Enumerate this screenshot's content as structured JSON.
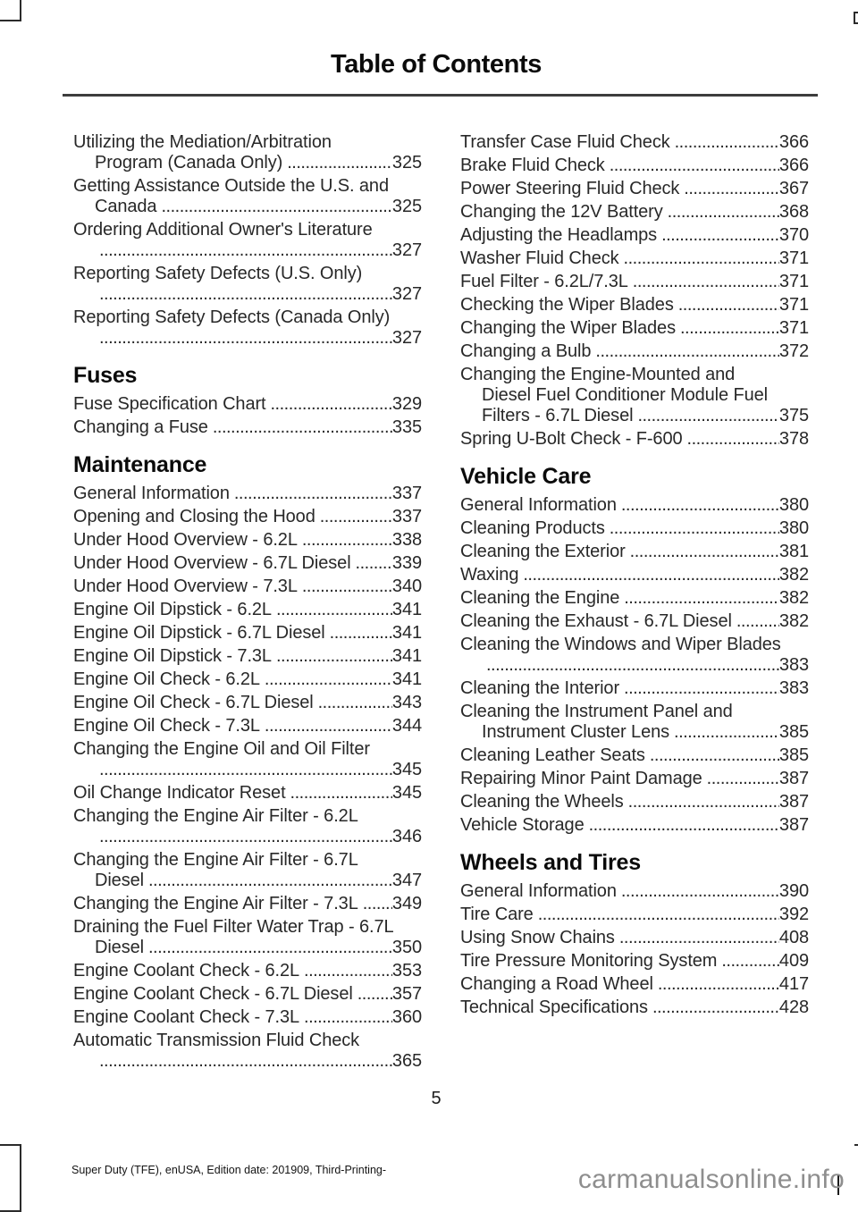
{
  "page": {
    "title": "Table of Contents",
    "page_number": "5",
    "footer_text": "Super Duty (TFE), enUSA, Edition date: 201909, Third-Printing-",
    "watermark": "carmanualsonline.info"
  },
  "colors": {
    "body_text": "#282828",
    "heading_text": "#0b0b0b",
    "title_rule": "#3d3d3d",
    "watermark_gray": "#8e8e8e",
    "background": "#ffffff"
  },
  "toc": {
    "columns": [
      {
        "blocks": [
          {
            "header": "",
            "entries": [
              {
                "lines": [
                  "Utilizing the Mediation/Arbitration",
                  "Program (Canada Only)"
                ],
                "page": "325"
              },
              {
                "lines": [
                  "Getting Assistance Outside the U.S. and",
                  "Canada"
                ],
                "page": "325"
              },
              {
                "lines": [
                  "Ordering Additional Owner's Literature",
                  ""
                ],
                "page": "327"
              },
              {
                "lines": [
                  "Reporting Safety Defects (U.S. Only)",
                  ""
                ],
                "page": "327"
              },
              {
                "lines": [
                  "Reporting Safety Defects (Canada Only)",
                  ""
                ],
                "page": "327"
              }
            ]
          },
          {
            "header": "Fuses",
            "entries": [
              {
                "lines": [
                  "Fuse Specification Chart"
                ],
                "page": "329"
              },
              {
                "lines": [
                  "Changing a Fuse"
                ],
                "page": "335"
              }
            ]
          },
          {
            "header": "Maintenance",
            "entries": [
              {
                "lines": [
                  "General Information"
                ],
                "page": "337"
              },
              {
                "lines": [
                  "Opening and Closing the Hood"
                ],
                "page": "337"
              },
              {
                "lines": [
                  "Under Hood Overview - 6.2L"
                ],
                "page": "338"
              },
              {
                "lines": [
                  "Under Hood Overview - 6.7L Diesel"
                ],
                "page": "339"
              },
              {
                "lines": [
                  "Under Hood Overview - 7.3L"
                ],
                "page": "340"
              },
              {
                "lines": [
                  "Engine Oil Dipstick - 6.2L"
                ],
                "page": "341"
              },
              {
                "lines": [
                  "Engine Oil Dipstick - 6.7L Diesel"
                ],
                "page": "341"
              },
              {
                "lines": [
                  "Engine Oil Dipstick - 7.3L"
                ],
                "page": "341"
              },
              {
                "lines": [
                  "Engine Oil Check - 6.2L"
                ],
                "page": "341"
              },
              {
                "lines": [
                  "Engine Oil Check - 6.7L Diesel"
                ],
                "page": "343"
              },
              {
                "lines": [
                  "Engine Oil Check - 7.3L"
                ],
                "page": "344"
              },
              {
                "lines": [
                  "Changing the Engine Oil and Oil Filter",
                  ""
                ],
                "page": "345"
              },
              {
                "lines": [
                  "Oil Change Indicator Reset"
                ],
                "page": "345"
              },
              {
                "lines": [
                  "Changing the Engine Air Filter - 6.2L",
                  ""
                ],
                "page": "346"
              },
              {
                "lines": [
                  "Changing the Engine Air Filter - 6.7L",
                  "Diesel"
                ],
                "page": "347"
              },
              {
                "lines": [
                  "Changing the Engine Air Filter - 7.3L"
                ],
                "page": "349"
              },
              {
                "lines": [
                  "Draining the Fuel Filter Water Trap - 6.7L",
                  "Diesel"
                ],
                "page": "350"
              },
              {
                "lines": [
                  "Engine Coolant Check - 6.2L"
                ],
                "page": "353"
              },
              {
                "lines": [
                  "Engine Coolant Check - 6.7L Diesel"
                ],
                "page": "357"
              },
              {
                "lines": [
                  "Engine Coolant Check - 7.3L"
                ],
                "page": "360"
              },
              {
                "lines": [
                  "Automatic Transmission Fluid Check",
                  ""
                ],
                "page": "365"
              }
            ]
          }
        ]
      },
      {
        "blocks": [
          {
            "header": "",
            "entries": [
              {
                "lines": [
                  "Transfer Case Fluid Check"
                ],
                "page": "366"
              },
              {
                "lines": [
                  "Brake Fluid Check"
                ],
                "page": "366"
              },
              {
                "lines": [
                  "Power Steering Fluid Check"
                ],
                "page": "367"
              },
              {
                "lines": [
                  "Changing the 12V Battery"
                ],
                "page": "368"
              },
              {
                "lines": [
                  "Adjusting the Headlamps"
                ],
                "page": "370"
              },
              {
                "lines": [
                  "Washer Fluid Check"
                ],
                "page": "371"
              },
              {
                "lines": [
                  "Fuel Filter - 6.2L/7.3L"
                ],
                "page": "371"
              },
              {
                "lines": [
                  "Checking the Wiper Blades"
                ],
                "page": "371"
              },
              {
                "lines": [
                  "Changing the Wiper Blades"
                ],
                "page": "371"
              },
              {
                "lines": [
                  "Changing a Bulb"
                ],
                "page": "372"
              },
              {
                "lines": [
                  "Changing the Engine-Mounted and",
                  "Diesel Fuel Conditioner Module Fuel",
                  "Filters - 6.7L Diesel"
                ],
                "page": "375"
              },
              {
                "lines": [
                  "Spring U-Bolt Check - F-600"
                ],
                "page": "378"
              }
            ]
          },
          {
            "header": "Vehicle Care",
            "entries": [
              {
                "lines": [
                  "General Information"
                ],
                "page": "380"
              },
              {
                "lines": [
                  "Cleaning Products"
                ],
                "page": "380"
              },
              {
                "lines": [
                  "Cleaning the Exterior"
                ],
                "page": "381"
              },
              {
                "lines": [
                  "Waxing"
                ],
                "page": "382"
              },
              {
                "lines": [
                  "Cleaning the Engine"
                ],
                "page": "382"
              },
              {
                "lines": [
                  "Cleaning the Exhaust - 6.7L Diesel"
                ],
                "page": "382"
              },
              {
                "lines": [
                  "Cleaning the Windows and Wiper Blades",
                  ""
                ],
                "page": "383"
              },
              {
                "lines": [
                  "Cleaning the Interior"
                ],
                "page": "383"
              },
              {
                "lines": [
                  "Cleaning the Instrument Panel and",
                  "Instrument Cluster Lens"
                ],
                "page": "385"
              },
              {
                "lines": [
                  "Cleaning Leather Seats"
                ],
                "page": "385"
              },
              {
                "lines": [
                  "Repairing Minor Paint Damage"
                ],
                "page": "387"
              },
              {
                "lines": [
                  "Cleaning the Wheels"
                ],
                "page": "387"
              },
              {
                "lines": [
                  "Vehicle Storage"
                ],
                "page": "387"
              }
            ]
          },
          {
            "header": "Wheels and Tires",
            "entries": [
              {
                "lines": [
                  "General Information"
                ],
                "page": "390"
              },
              {
                "lines": [
                  "Tire Care"
                ],
                "page": "392"
              },
              {
                "lines": [
                  "Using Snow Chains"
                ],
                "page": "408"
              },
              {
                "lines": [
                  "Tire Pressure Monitoring System"
                ],
                "page": "409"
              },
              {
                "lines": [
                  "Changing a Road Wheel"
                ],
                "page": "417"
              },
              {
                "lines": [
                  "Technical Specifications"
                ],
                "page": "428"
              }
            ]
          }
        ]
      }
    ]
  }
}
